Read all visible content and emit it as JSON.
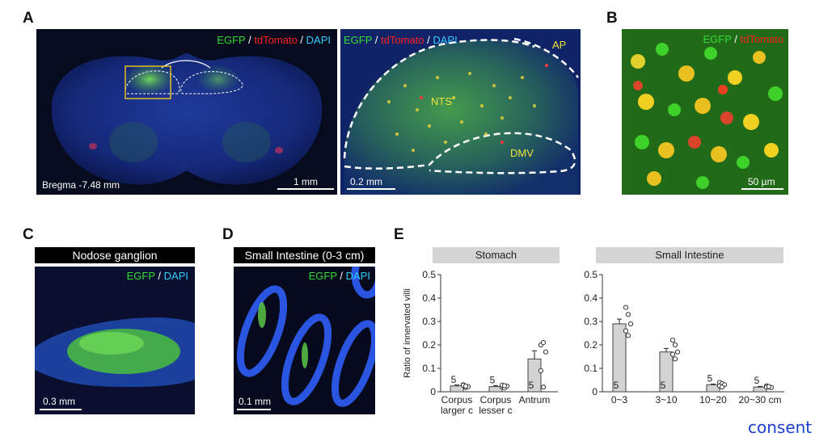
{
  "panels": {
    "a": "A",
    "b": "B",
    "c": "C",
    "d": "D",
    "e": "E"
  },
  "panel_a_left": {
    "label_egfp": "EGFP",
    "sep1": " / ",
    "label_tdtomato": "tdTomato",
    "sep2": " / ",
    "label_dapi": "DAPI",
    "bregma": "Bregma -7.48 mm",
    "scale": "1 mm"
  },
  "panel_a_right": {
    "label_egfp": "EGFP",
    "sep1": " / ",
    "label_tdtomato": "tdTomato",
    "sep2": " / ",
    "label_dapi": "DAPI",
    "ap": "AP",
    "nts": "NTS",
    "dmv": "DMV",
    "scale": "0.2 mm"
  },
  "panel_b": {
    "label_egfp": "EGFP",
    "sep": " / ",
    "label_tdtomato": "tdTomato",
    "scale": "50 µm"
  },
  "panel_c": {
    "title": "Nodose ganglion",
    "label_egfp": "EGFP",
    "sep": " / ",
    "label_dapi": "DAPI",
    "scale": "0.3 mm"
  },
  "panel_d": {
    "title": "Small Intestine (0-3 cm)",
    "label_egfp": "EGFP",
    "sep": " / ",
    "label_dapi": "DAPI",
    "scale": "0.1 mm"
  },
  "consent": "consent",
  "colors": {
    "bar_fill": "#d3d3d3",
    "bar_stroke": "#444444",
    "header_bg": "#d5d5d5",
    "micro_bg": "#0a1030"
  },
  "chart_data": [
    {
      "type": "bar",
      "title": "Stomach",
      "ylabel": "Ratio of innervated villi",
      "ylim": [
        0,
        0.5
      ],
      "yticks": [
        "0",
        "0.1",
        "0.2",
        "0.3",
        "0.4",
        "0.5"
      ],
      "categories": [
        "Corpus larger c",
        "Corpus lesser c",
        "Antrum"
      ],
      "category_lines": [
        [
          "Corpus",
          "larger c"
        ],
        [
          "Corpus",
          "lesser c"
        ],
        [
          "Antrum"
        ]
      ],
      "values": [
        0.025,
        0.022,
        0.14
      ],
      "errors": [
        0.004,
        0.004,
        0.035
      ],
      "n_labels": [
        "5",
        "5",
        "5"
      ],
      "points": [
        [
          0.03,
          0.018,
          0.022,
          0.028,
          0.024
        ],
        [
          0.02,
          0.016,
          0.024,
          0.028,
          0.026
        ],
        [
          0.2,
          0.21,
          0.17,
          0.09,
          0.02
        ]
      ]
    },
    {
      "type": "bar",
      "title": "Small Intestine",
      "ylim": [
        0,
        0.5
      ],
      "yticks": [
        "0",
        "0.1",
        "0.2",
        "0.3",
        "0.4",
        "0.5"
      ],
      "categories": [
        "0~3",
        "3~10",
        "10~20",
        "20~30 cm"
      ],
      "category_lines": [
        [
          "0~3"
        ],
        [
          "3~10"
        ],
        [
          "10~20"
        ],
        [
          "20~30 cm"
        ]
      ],
      "values": [
        0.29,
        0.17,
        0.03,
        0.02
      ],
      "errors": [
        0.02,
        0.015,
        0.003,
        0.003
      ],
      "n_labels": [
        "5",
        "5",
        "5",
        "5"
      ],
      "points": [
        [
          0.36,
          0.33,
          0.29,
          0.26,
          0.24
        ],
        [
          0.22,
          0.2,
          0.17,
          0.16,
          0.14
        ],
        [
          0.04,
          0.035,
          0.03,
          0.025,
          0.02
        ],
        [
          0.025,
          0.02,
          0.018,
          0.02,
          0.022
        ]
      ]
    }
  ]
}
